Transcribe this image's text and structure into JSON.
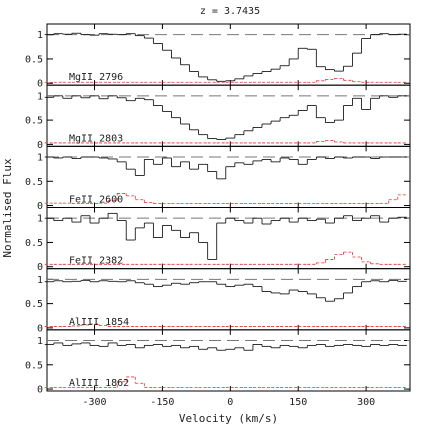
{
  "chart_data": [
    {
      "type": "step",
      "title": "z = 3.7435",
      "y_label": "Normalised Flux",
      "label": "MgII 2796",
      "continuum": 1,
      "xlim": [
        -405,
        397
      ],
      "xticks": [
        -300,
        -150,
        0,
        150,
        300
      ],
      "ylim": [
        -0.04,
        1.22
      ],
      "yticks": [
        0,
        0.5,
        1
      ],
      "x": [
        -400,
        -380,
        -360,
        -340,
        -320,
        -300,
        -280,
        -260,
        -240,
        -220,
        -200,
        -180,
        -160,
        -140,
        -120,
        -100,
        -80,
        -60,
        -40,
        -20,
        0,
        20,
        40,
        60,
        80,
        100,
        120,
        140,
        160,
        180,
        200,
        220,
        240,
        260,
        280,
        300,
        320,
        340,
        360,
        380
      ],
      "series": [
        {
          "color": "#000000",
          "style": "solid",
          "values": [
            1.0,
            1.02,
            1.01,
            1.03,
            1.0,
            0.99,
            1.02,
            1.01,
            1.0,
            1.02,
            0.98,
            0.93,
            0.82,
            0.68,
            0.52,
            0.38,
            0.24,
            0.13,
            0.07,
            0.04,
            0.05,
            0.09,
            0.15,
            0.2,
            0.24,
            0.29,
            0.36,
            0.5,
            0.72,
            0.7,
            0.34,
            0.28,
            0.25,
            0.35,
            0.62,
            0.92,
            1.0,
            1.02,
            1.0,
            1.01
          ]
        },
        {
          "color": "#e03030",
          "style": "dashed",
          "values": [
            0.02,
            0.02,
            0.02,
            0.02,
            0.02,
            0.02,
            0.02,
            0.02,
            0.02,
            0.02,
            0.02,
            0.02,
            0.02,
            0.02,
            0.02,
            0.02,
            0.02,
            0.02,
            0.02,
            0.02,
            0.02,
            0.02,
            0.02,
            0.02,
            0.02,
            0.02,
            0.02,
            0.02,
            0.02,
            0.02,
            0.05,
            0.08,
            0.1,
            0.06,
            0.03,
            0.02,
            0.02,
            0.02,
            0.02,
            0.02
          ]
        }
      ]
    },
    {
      "type": "step",
      "label": "MgII 2803",
      "continuum": 1,
      "xlim": [
        -405,
        397
      ],
      "xticks": [
        -300,
        -150,
        0,
        150,
        300
      ],
      "ylim": [
        -0.04,
        1.22
      ],
      "yticks": [
        0,
        0.5,
        1
      ],
      "x": [
        -400,
        -380,
        -360,
        -340,
        -320,
        -300,
        -280,
        -260,
        -240,
        -220,
        -200,
        -180,
        -160,
        -140,
        -120,
        -100,
        -80,
        -60,
        -40,
        -20,
        0,
        20,
        40,
        60,
        80,
        100,
        120,
        140,
        160,
        180,
        200,
        220,
        240,
        260,
        280,
        300,
        320,
        340,
        360,
        380
      ],
      "series": [
        {
          "color": "#000000",
          "style": "solid",
          "values": [
            0.97,
            1.0,
            0.95,
            1.0,
            0.96,
            1.0,
            0.94,
            1.0,
            0.96,
            0.9,
            0.95,
            0.92,
            0.8,
            0.68,
            0.55,
            0.42,
            0.3,
            0.2,
            0.12,
            0.1,
            0.13,
            0.2,
            0.28,
            0.35,
            0.42,
            0.48,
            0.55,
            0.6,
            0.7,
            0.8,
            0.55,
            0.45,
            0.5,
            0.8,
            0.95,
            0.72,
            0.95,
            1.0,
            0.97,
            1.0
          ]
        },
        {
          "color": "#e03030",
          "style": "dashed",
          "values": [
            0.03,
            0.03,
            0.03,
            0.03,
            0.03,
            0.03,
            0.03,
            0.03,
            0.03,
            0.03,
            0.03,
            0.03,
            0.03,
            0.03,
            0.03,
            0.03,
            0.03,
            0.03,
            0.03,
            0.03,
            0.03,
            0.03,
            0.03,
            0.03,
            0.03,
            0.03,
            0.03,
            0.03,
            0.03,
            0.03,
            0.06,
            0.08,
            0.05,
            0.03,
            0.03,
            0.03,
            0.03,
            0.03,
            0.03,
            0.03
          ]
        }
      ]
    },
    {
      "type": "step",
      "label": "FeII 2600",
      "continuum": 1,
      "xlim": [
        -405,
        397
      ],
      "xticks": [
        -300,
        -150,
        0,
        150,
        300
      ],
      "ylim": [
        -0.04,
        1.22
      ],
      "yticks": [
        0,
        0.5,
        1
      ],
      "x": [
        -400,
        -380,
        -360,
        -340,
        -320,
        -300,
        -280,
        -260,
        -240,
        -220,
        -200,
        -180,
        -160,
        -140,
        -120,
        -100,
        -80,
        -60,
        -40,
        -20,
        0,
        20,
        40,
        60,
        80,
        100,
        120,
        140,
        160,
        180,
        200,
        220,
        240,
        260,
        280,
        300,
        320,
        340,
        360,
        380
      ],
      "series": [
        {
          "color": "#000000",
          "style": "solid",
          "values": [
            1.0,
            0.98,
            1.0,
            0.97,
            1.0,
            1.0,
            0.98,
            0.96,
            0.9,
            0.75,
            0.62,
            0.95,
            0.85,
            0.98,
            0.8,
            0.9,
            0.75,
            0.85,
            0.7,
            0.55,
            0.8,
            0.88,
            0.85,
            0.92,
            0.95,
            0.9,
            0.98,
            0.95,
            0.85,
            0.95,
            1.0,
            0.97,
            1.0,
            0.98,
            1.0,
            1.0,
            0.97,
            1.0,
            1.0,
            1.0
          ]
        },
        {
          "color": "#e03030",
          "style": "dashed",
          "values": [
            0.05,
            0.05,
            0.05,
            0.04,
            0.04,
            0.04,
            0.05,
            0.1,
            0.25,
            0.2,
            0.12,
            0.06,
            0.04,
            0.04,
            0.04,
            0.04,
            0.04,
            0.04,
            0.04,
            0.04,
            0.04,
            0.04,
            0.04,
            0.04,
            0.04,
            0.04,
            0.04,
            0.04,
            0.04,
            0.04,
            0.04,
            0.04,
            0.04,
            0.04,
            0.04,
            0.04,
            0.04,
            0.04,
            0.12,
            0.22
          ]
        }
      ]
    },
    {
      "type": "step",
      "label": "FeII 2382",
      "continuum": 1,
      "xlim": [
        -405,
        397
      ],
      "xticks": [
        -300,
        -150,
        0,
        150,
        300
      ],
      "ylim": [
        -0.04,
        1.22
      ],
      "yticks": [
        0,
        0.5,
        1
      ],
      "x": [
        -400,
        -380,
        -360,
        -340,
        -320,
        -300,
        -280,
        -260,
        -240,
        -220,
        -200,
        -180,
        -160,
        -140,
        -120,
        -100,
        -80,
        -60,
        -40,
        -20,
        0,
        20,
        40,
        60,
        80,
        100,
        120,
        140,
        160,
        180,
        200,
        220,
        240,
        260,
        280,
        300,
        320,
        340,
        360,
        380
      ],
      "series": [
        {
          "color": "#000000",
          "style": "solid",
          "values": [
            1.0,
            0.95,
            1.0,
            0.92,
            1.05,
            0.9,
            1.0,
            1.1,
            0.95,
            0.55,
            0.8,
            0.9,
            0.6,
            0.85,
            0.75,
            0.6,
            0.7,
            0.5,
            0.15,
            0.9,
            1.0,
            0.95,
            0.9,
            1.0,
            0.88,
            0.95,
            1.0,
            0.92,
            1.0,
            0.95,
            0.98,
            0.9,
            1.0,
            1.05,
            0.95,
            1.0,
            1.05,
            0.92,
            1.0,
            1.02
          ]
        },
        {
          "color": "#e03030",
          "style": "dashed",
          "values": [
            0.05,
            0.05,
            0.05,
            0.05,
            0.05,
            0.05,
            0.05,
            0.05,
            0.05,
            0.05,
            0.05,
            0.05,
            0.05,
            0.05,
            0.05,
            0.05,
            0.05,
            0.05,
            0.05,
            0.05,
            0.05,
            0.05,
            0.05,
            0.05,
            0.05,
            0.05,
            0.05,
            0.05,
            0.05,
            0.05,
            0.08,
            0.15,
            0.25,
            0.3,
            0.2,
            0.1,
            0.06,
            0.05,
            0.05,
            0.05
          ]
        }
      ]
    },
    {
      "type": "step",
      "label": "AlIII 1854",
      "continuum": 1,
      "xlim": [
        -405,
        397
      ],
      "xticks": [
        -300,
        -150,
        0,
        150,
        300
      ],
      "ylim": [
        -0.04,
        1.22
      ],
      "yticks": [
        0,
        0.5,
        1
      ],
      "x": [
        -400,
        -380,
        -360,
        -340,
        -320,
        -300,
        -280,
        -260,
        -240,
        -220,
        -200,
        -180,
        -160,
        -140,
        -120,
        -100,
        -80,
        -60,
        -40,
        -20,
        0,
        20,
        40,
        60,
        80,
        100,
        120,
        140,
        160,
        180,
        200,
        220,
        240,
        260,
        280,
        300,
        320,
        340,
        360,
        380
      ],
      "series": [
        {
          "color": "#000000",
          "style": "solid",
          "values": [
            0.95,
            0.97,
            0.95,
            0.96,
            0.98,
            0.95,
            0.97,
            0.96,
            0.95,
            0.97,
            0.93,
            0.9,
            0.85,
            0.88,
            0.92,
            0.9,
            0.93,
            0.95,
            0.95,
            0.9,
            0.85,
            0.88,
            0.9,
            0.85,
            0.75,
            0.72,
            0.7,
            0.78,
            0.75,
            0.7,
            0.62,
            0.55,
            0.6,
            0.72,
            0.85,
            0.95,
            0.97,
            0.95,
            0.98,
            0.96
          ]
        },
        {
          "color": "#e03030",
          "style": "dashed",
          "values": [
            0.03,
            0.03,
            0.03,
            0.04,
            0.06,
            0.08,
            0.05,
            0.03,
            0.03,
            0.03,
            0.03,
            0.03,
            0.03,
            0.03,
            0.03,
            0.03,
            0.03,
            0.03,
            0.03,
            0.03,
            0.03,
            0.03,
            0.03,
            0.03,
            0.03,
            0.03,
            0.03,
            0.03,
            0.03,
            0.03,
            0.03,
            0.03,
            0.03,
            0.03,
            0.03,
            0.03,
            0.03,
            0.03,
            0.03,
            0.03
          ]
        }
      ]
    },
    {
      "type": "step",
      "label": "AlIII 1862",
      "continuum": 1,
      "x_label": "Velocity (km/s)",
      "xlim": [
        -405,
        397
      ],
      "xticks": [
        -300,
        -150,
        0,
        150,
        300
      ],
      "ylim": [
        -0.04,
        1.22
      ],
      "yticks": [
        0,
        0.5,
        1
      ],
      "x": [
        -400,
        -380,
        -360,
        -340,
        -320,
        -300,
        -280,
        -260,
        -240,
        -220,
        -200,
        -180,
        -160,
        -140,
        -120,
        -100,
        -80,
        -60,
        -40,
        -20,
        0,
        20,
        40,
        60,
        80,
        100,
        120,
        140,
        160,
        180,
        200,
        220,
        240,
        260,
        280,
        300,
        320,
        340,
        360,
        380
      ],
      "series": [
        {
          "color": "#000000",
          "style": "solid",
          "values": [
            0.92,
            0.95,
            0.9,
            0.93,
            0.95,
            0.9,
            0.88,
            0.95,
            0.9,
            0.92,
            0.85,
            0.9,
            0.92,
            0.88,
            0.9,
            0.85,
            0.88,
            0.82,
            0.85,
            0.8,
            0.82,
            0.85,
            0.8,
            0.92,
            0.88,
            0.85,
            0.9,
            0.88,
            0.85,
            0.9,
            0.92,
            0.88,
            0.9,
            0.92,
            0.9,
            0.88,
            0.92,
            0.9,
            0.92,
            0.9
          ]
        },
        {
          "color": "#e03030",
          "style": "dashed",
          "values": [
            0.03,
            0.03,
            0.03,
            0.03,
            0.03,
            0.03,
            0.03,
            0.03,
            0.15,
            0.25,
            0.12,
            0.03,
            0.03,
            0.03,
            0.03,
            0.03,
            0.03,
            0.03,
            0.03,
            0.03,
            0.03,
            0.03,
            0.03,
            0.03,
            0.03,
            0.03,
            0.03,
            0.03,
            0.03,
            0.03,
            0.03,
            0.03,
            0.03,
            0.03,
            0.03,
            0.03,
            0.03,
            0.03,
            0.03,
            0.03
          ]
        }
      ]
    }
  ]
}
